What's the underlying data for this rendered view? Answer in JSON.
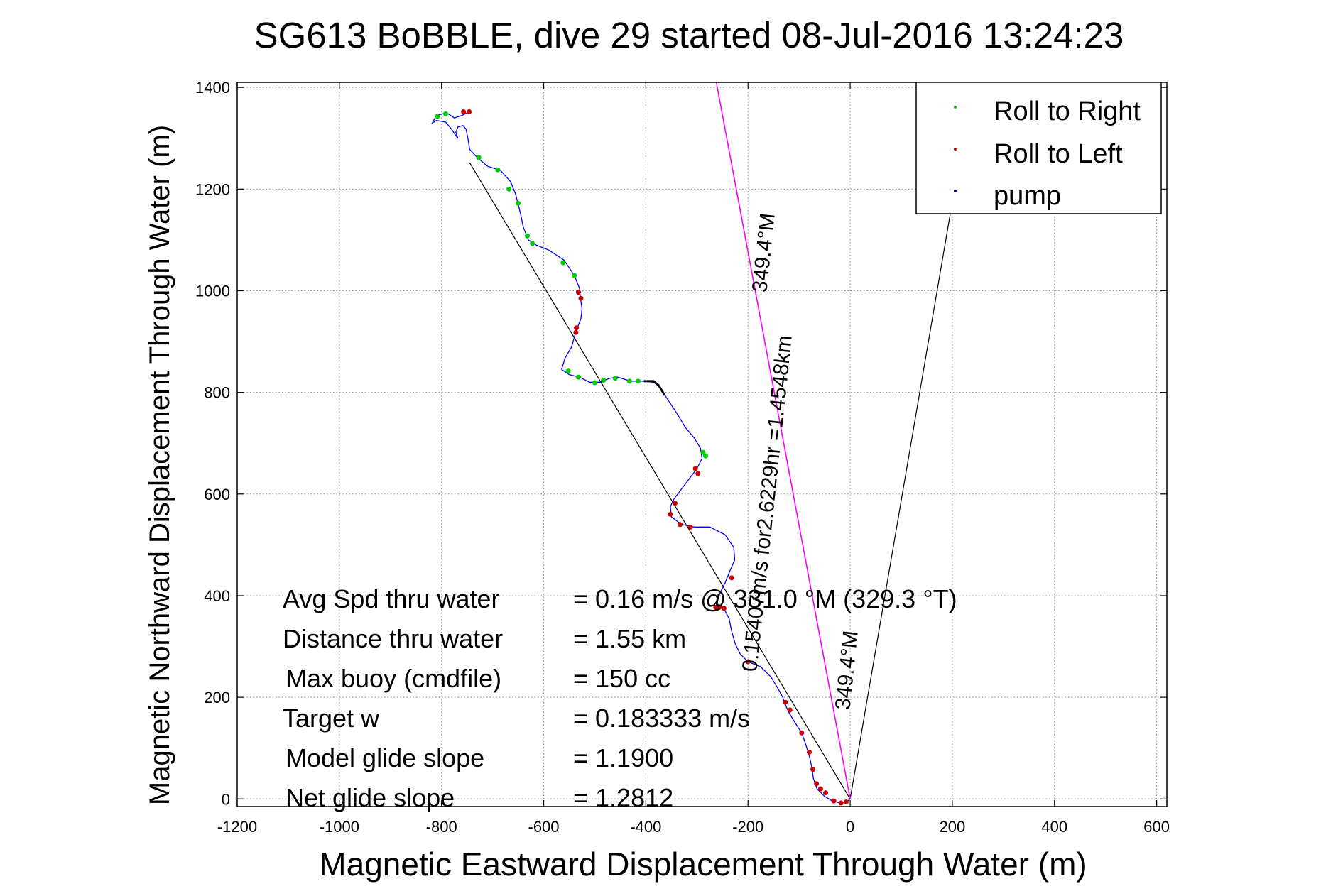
{
  "chart_data": {
    "type": "line",
    "title": "SG613 BoBBLE, dive 29 started 08-Jul-2016 13:24:23",
    "xlabel": "Magnetic Eastward Displacement Through Water (m)",
    "ylabel": "Magnetic Northward Displacement Through Water (m)",
    "xlim": [
      -1200,
      620
    ],
    "ylim": [
      -15,
      1410
    ],
    "xticks": [
      -1200,
      -1000,
      -800,
      -600,
      -400,
      -200,
      0,
      200,
      400,
      600
    ],
    "yticks": [
      0,
      200,
      400,
      600,
      800,
      1000,
      1200,
      1400
    ],
    "grid": true,
    "legend_position": "top-right",
    "legend": [
      {
        "name": "Roll to Right",
        "color": "#00cc00"
      },
      {
        "name": "Roll to Left",
        "color": "#cc0000"
      },
      {
        "name": "pump",
        "color": "#000080"
      }
    ],
    "track": {
      "color": "#0000ff",
      "points": [
        [
          0,
          0
        ],
        [
          -8,
          -6
        ],
        [
          -20,
          -8
        ],
        [
          -35,
          -4
        ],
        [
          -50,
          5
        ],
        [
          -65,
          20
        ],
        [
          -72,
          40
        ],
        [
          -75,
          62
        ],
        [
          -80,
          85
        ],
        [
          -88,
          110
        ],
        [
          -95,
          130
        ],
        [
          -108,
          150
        ],
        [
          -120,
          170
        ],
        [
          -128,
          188
        ],
        [
          -132,
          200
        ],
        [
          -140,
          215
        ],
        [
          -155,
          240
        ],
        [
          -175,
          260
        ],
        [
          -200,
          270
        ],
        [
          -215,
          285
        ],
        [
          -225,
          305
        ],
        [
          -232,
          330
        ],
        [
          -237,
          355
        ],
        [
          -245,
          370
        ],
        [
          -255,
          380
        ],
        [
          -262,
          385
        ],
        [
          -255,
          405
        ],
        [
          -245,
          425
        ],
        [
          -235,
          450
        ],
        [
          -226,
          470
        ],
        [
          -228,
          495
        ],
        [
          -245,
          520
        ],
        [
          -275,
          535
        ],
        [
          -305,
          535
        ],
        [
          -330,
          540
        ],
        [
          -350,
          555
        ],
        [
          -352,
          575
        ],
        [
          -345,
          590
        ],
        [
          -330,
          610
        ],
        [
          -315,
          630
        ],
        [
          -300,
          650
        ],
        [
          -290,
          670
        ],
        [
          -293,
          690
        ],
        [
          -305,
          710
        ],
        [
          -322,
          730
        ],
        [
          -340,
          760
        ],
        [
          -360,
          790
        ],
        [
          -372,
          810
        ],
        [
          -385,
          820
        ],
        [
          -405,
          822
        ],
        [
          -430,
          822
        ],
        [
          -455,
          830
        ],
        [
          -470,
          828
        ],
        [
          -490,
          820
        ],
        [
          -510,
          820
        ],
        [
          -530,
          830
        ],
        [
          -550,
          835
        ],
        [
          -565,
          845
        ],
        [
          -558,
          868
        ],
        [
          -545,
          890
        ],
        [
          -537,
          920
        ],
        [
          -527,
          945
        ],
        [
          -525,
          965
        ],
        [
          -528,
          985
        ],
        [
          -530,
          1005
        ],
        [
          -540,
          1030
        ],
        [
          -560,
          1060
        ],
        [
          -590,
          1080
        ],
        [
          -615,
          1090
        ],
        [
          -630,
          1100
        ],
        [
          -640,
          1125
        ],
        [
          -645,
          1150
        ],
        [
          -650,
          1170
        ],
        [
          -655,
          1190
        ],
        [
          -665,
          1215
        ],
        [
          -685,
          1237
        ],
        [
          -710,
          1245
        ],
        [
          -730,
          1262
        ],
        [
          -745,
          1278
        ],
        [
          -748,
          1298
        ],
        [
          -752,
          1318
        ],
        [
          -758,
          1325
        ],
        [
          -768,
          1322
        ],
        [
          -772,
          1312
        ],
        [
          -768,
          1300
        ],
        [
          -782,
          1320
        ],
        [
          -792,
          1332
        ],
        [
          -810,
          1335
        ],
        [
          -818,
          1330
        ],
        [
          -810,
          1345
        ],
        [
          -790,
          1350
        ],
        [
          -775,
          1340
        ],
        [
          -760,
          1345
        ],
        [
          -745,
          1352
        ]
      ]
    },
    "pump_segment": {
      "color": "#000000",
      "points": [
        [
          -363,
          794
        ],
        [
          -375,
          814
        ],
        [
          -385,
          822
        ],
        [
          -404,
          822
        ]
      ]
    },
    "roll_right": {
      "color": "#00cc00",
      "points": [
        [
          -727,
          1262
        ],
        [
          -690,
          1238
        ],
        [
          -650,
          1172
        ],
        [
          -668,
          1200
        ],
        [
          -632,
          1108
        ],
        [
          -622,
          1093
        ],
        [
          -562,
          1055
        ],
        [
          -540,
          1030
        ],
        [
          -552,
          842
        ],
        [
          -532,
          830
        ],
        [
          -500,
          819
        ],
        [
          -483,
          824
        ],
        [
          -460,
          828
        ],
        [
          -432,
          822
        ],
        [
          -415,
          822
        ],
        [
          -288,
          682
        ],
        [
          -283,
          675
        ],
        [
          -808,
          1343
        ],
        [
          -792,
          1348
        ]
      ]
    },
    "roll_left": {
      "color": "#cc0000",
      "points": [
        [
          -757,
          1352
        ],
        [
          -746,
          1352
        ],
        [
          -527,
          985
        ],
        [
          -532,
          997
        ],
        [
          -537,
          918
        ],
        [
          -536,
          927
        ],
        [
          -303,
          650
        ],
        [
          -298,
          640
        ],
        [
          -343,
          582
        ],
        [
          -352,
          560
        ],
        [
          -333,
          540
        ],
        [
          -313,
          535
        ],
        [
          -263,
          377
        ],
        [
          -255,
          378
        ],
        [
          -247,
          375
        ],
        [
          -232,
          435
        ],
        [
          -127,
          190
        ],
        [
          -118,
          175
        ],
        [
          -95,
          130
        ],
        [
          -80,
          92
        ],
        [
          -73,
          58
        ],
        [
          -66,
          30
        ],
        [
          -58,
          20
        ],
        [
          -48,
          12
        ],
        [
          -32,
          -4
        ],
        [
          -18,
          -8
        ],
        [
          -8,
          -6
        ],
        [
          -200,
          270
        ]
      ]
    },
    "reference_lines": [
      {
        "color": "#000000",
        "from": [
          0,
          0
        ],
        "to": [
          -745,
          1252
        ],
        "label": "349.4°M"
      },
      {
        "color": "#000000",
        "from": [
          0,
          0
        ],
        "to": [
          240,
          1410
        ]
      },
      {
        "color": "#ff00ff",
        "from": [
          0,
          0
        ],
        "to": [
          -262,
          1410
        ],
        "label": "349.4°M"
      }
    ],
    "annotation_vector": "0.15407m/s for2.6229hr =1.4548km",
    "heading_label_mid": "349.4°M",
    "heading_label_top": "349.4°M",
    "stats": [
      {
        "label": "Avg Spd thru water",
        "value": "=  0.16 m/s @ 331.0 °M (329.3 °T)"
      },
      {
        "label": "Distance thru water",
        "value": "=  1.55 km"
      },
      {
        "label": "Max buoy (cmdfile)",
        "value": "= 150 cc"
      },
      {
        "label": "Target w",
        "value": "= 0.183333 m/s"
      },
      {
        "label": "Model glide slope",
        "value": "= 1.1900"
      },
      {
        "label": "Net glide slope",
        "value": "= 1.2812"
      }
    ]
  }
}
